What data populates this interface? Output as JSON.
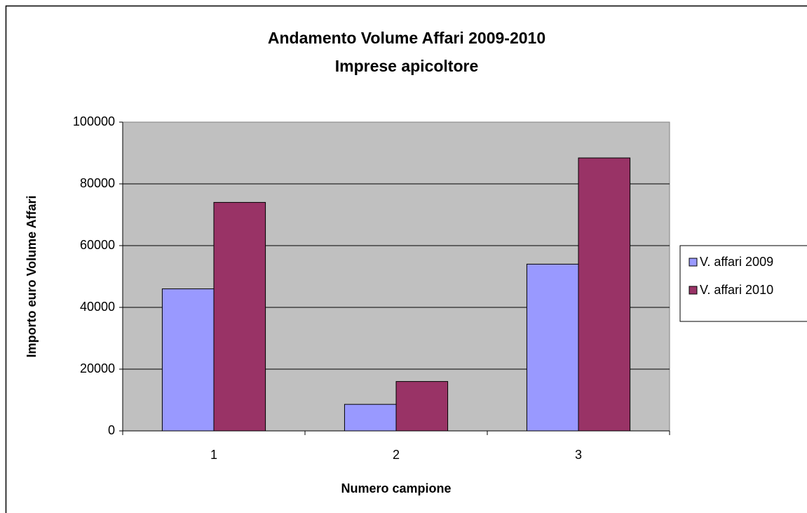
{
  "chart_data": {
    "type": "bar",
    "title": "Andamento Volume Affari 2009-2010",
    "subtitle": "Imprese apicoltore",
    "x_label": "Numero campione",
    "y_label": "Importo euro Volume Affari",
    "categories": [
      "1",
      "2",
      "3"
    ],
    "series": [
      {
        "name": "V. affari 2009",
        "color": "#9999ff",
        "values": [
          46000,
          8600,
          54000
        ]
      },
      {
        "name": "V. affari 2010",
        "color": "#993366",
        "values": [
          74000,
          16000,
          88400
        ]
      }
    ],
    "ylim": [
      0,
      100000
    ],
    "yticks": [
      0,
      20000,
      40000,
      60000,
      80000,
      100000
    ],
    "grid": true,
    "legend": "right"
  }
}
